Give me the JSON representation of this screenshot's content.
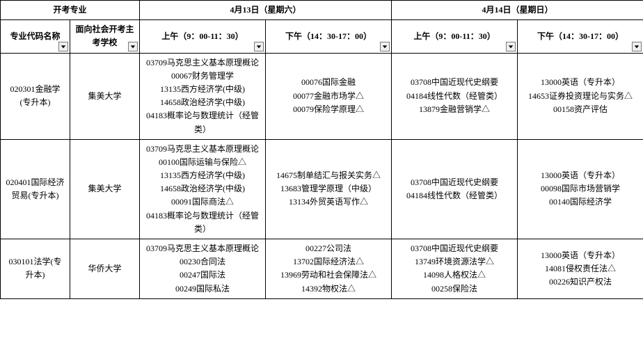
{
  "header": {
    "major": "开考专业",
    "day1": "4月13日（星期六）",
    "day2": "4月14日（星期日）",
    "code": "专业代码名称",
    "school": "面向社会开考主考学校",
    "am": "上午（9：00-11：30）",
    "pm": "下午（14：30-17：00）"
  },
  "rows": [
    {
      "code": "020301金融学(专升本)",
      "school": "集美大学",
      "d1am": "03709马克思主义基本原理概论\n00067财务管理学\n13135西方经济学(中级)\n14658政治经济学(中级)\n04183概率论与数理统计（经管类）",
      "d1pm": "00076国际金融\n00077金融市场学△\n00079保险学原理△",
      "d2am": "03708中国近现代史纲要\n04184线性代数（经管类）\n13879金融营销学△",
      "d2pm": "13000英语（专升本）\n14653证券投资理论与实务△\n00158资产评估",
      "extra": "0"
    },
    {
      "code": "020401国际经济贸易(专升本)",
      "school": "集美大学",
      "d1am": "03709马克思主义基本原理概论\n00100国际运输与保险△\n13135西方经济学(中级)\n14658政治经济学(中级)\n00091国际商法△\n04183概率论与数理统计（经管类）",
      "d1pm": "14675制单结汇与报关实务△\n13683管理学原理（中级）\n13134外贸英语写作△",
      "d2am": "03708中国近现代史纲要\n04184线性代数（经管类）",
      "d2pm": "13000英语（专升本）\n00098国际市场营销学\n00140国际经济学",
      "extra": "0"
    },
    {
      "code": "030101法学(专升本)",
      "school": "华侨大学",
      "d1am": "03709马克思主义基本原理概论\n00230合同法\n00247国际法\n00249国际私法",
      "d1pm": "00227公司法\n13702国际经济法△\n13969劳动和社会保障法△\n14392物权法△",
      "d2am": "03708中国近现代史纲要\n13749环境资源法学△\n14098人格权法△\n00258保险法",
      "d2pm": "13000英语（专升本）\n14081侵权责任法△\n00226知识产权法",
      "extra": "0"
    }
  ]
}
